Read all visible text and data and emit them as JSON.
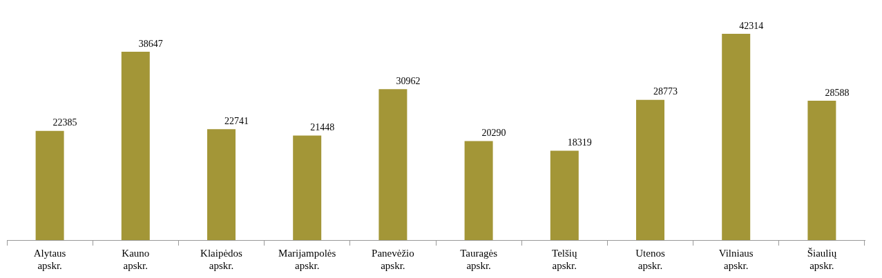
{
  "chart_data": {
    "type": "bar",
    "categories": [
      "Alytaus\napskr.",
      "Kauno\napskr.",
      "Klaipėdos\napskr.",
      "Marijampolės\napskr.",
      "Panevėžio\napskr.",
      "Tauragės\napskr.",
      "Telšių\napskr.",
      "Utenos\napskr.",
      "Vilniaus\napskr.",
      "Šiaulių\napskr."
    ],
    "values": [
      22385,
      38647,
      22741,
      21448,
      30962,
      20290,
      18319,
      28773,
      42314,
      28588
    ],
    "color": "#a39637",
    "data_labels": true
  }
}
